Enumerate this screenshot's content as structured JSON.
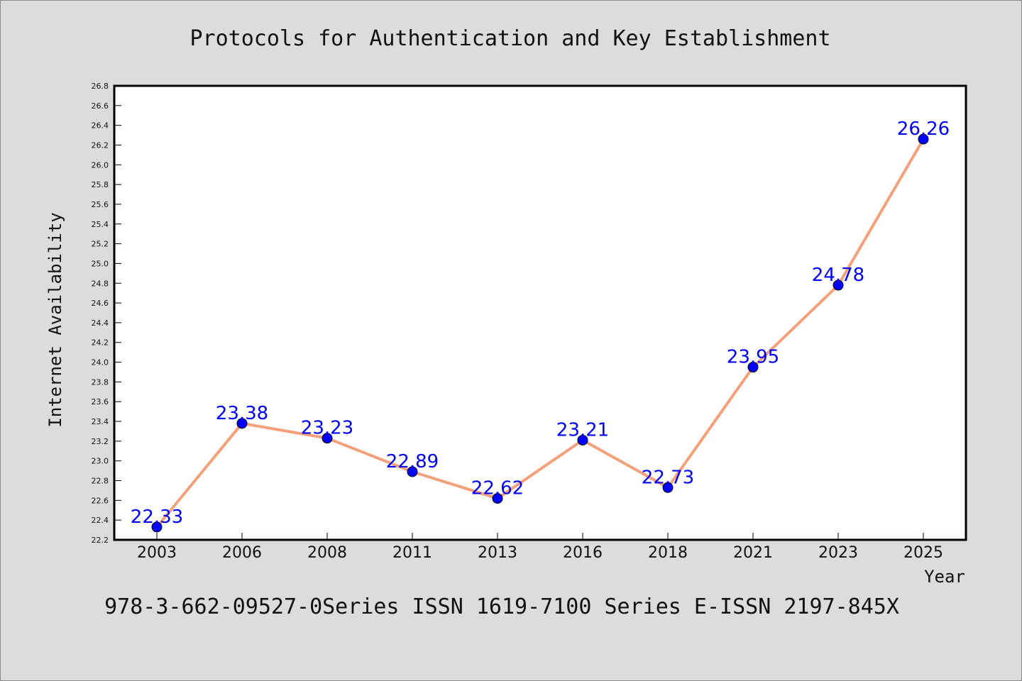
{
  "chart_data": {
    "type": "line",
    "title": "Protocols for Authentication and Key Establishment",
    "xlabel": "Year",
    "ylabel": "Internet Availability",
    "categories": [
      "2003",
      "2006",
      "2008",
      "2011",
      "2013",
      "2016",
      "2018",
      "2021",
      "2023",
      "2025"
    ],
    "series": [
      {
        "values": [
          22.33,
          23.38,
          23.23,
          22.89,
          22.62,
          23.21,
          22.73,
          23.95,
          24.78,
          26.26
        ],
        "data_labels": [
          "22.33",
          "23.38",
          "23.23",
          "22.89",
          "22.62",
          "23.21",
          "22.73",
          "23.95",
          "24.78",
          "26.26"
        ],
        "line_color": "#f4a07a",
        "marker_color": "#0000ff"
      }
    ],
    "ylim": [
      22.2,
      26.8
    ],
    "yticks": [
      "22.2",
      "22.4",
      "22.6",
      "22.8",
      "23.0",
      "23.2",
      "23.4",
      "23.6",
      "23.8",
      "24.0",
      "24.2",
      "24.4",
      "24.6",
      "24.8",
      "25.0",
      "25.2",
      "25.4",
      "25.6",
      "25.8",
      "26.0",
      "26.2",
      "26.4",
      "26.6",
      "26.8"
    ],
    "grid": false,
    "label_color": "#0000ff"
  },
  "footer": "978-3-662-09527-0Series ISSN 1619-7100 Series E-ISSN 2197-845X"
}
